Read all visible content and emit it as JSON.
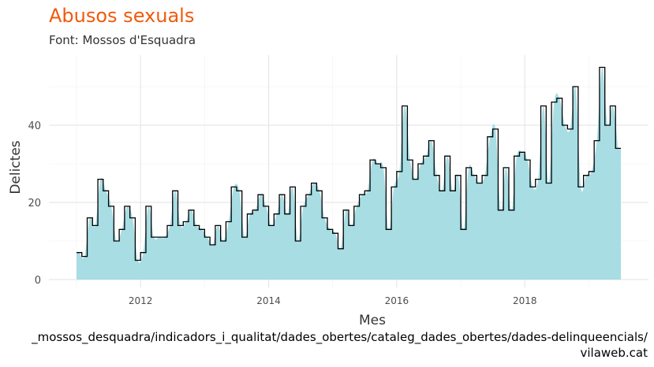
{
  "chart_data": {
    "type": "area",
    "title": "Abusos sexuals",
    "subtitle": "Font: Mossos d'Esquadra",
    "xlabel": "Mes",
    "ylabel": "Delictes",
    "x_start": "2011-01",
    "x_end": "2019-06",
    "x_ticks": [
      "2012",
      "2014",
      "2016",
      "2018"
    ],
    "y_ticks": [
      "0",
      "20",
      "40"
    ],
    "ylim": [
      0,
      57
    ],
    "grid": true,
    "fill_color": "#a8dde4",
    "step_color": "#000000",
    "series": [
      {
        "values": [
          7,
          6,
          16,
          14,
          26,
          23,
          19,
          10,
          13,
          19,
          16,
          5,
          7,
          19,
          11,
          11,
          11,
          14,
          23,
          14,
          15,
          18,
          14,
          13,
          11,
          9,
          14,
          10,
          15,
          24,
          23,
          11,
          17,
          18,
          22,
          19,
          14,
          17,
          22,
          17,
          24,
          10,
          19,
          22,
          25,
          23,
          16,
          13,
          12,
          8,
          18,
          14,
          19,
          22,
          23,
          31,
          30,
          29,
          13,
          24,
          28,
          45,
          31,
          26,
          30,
          32,
          36,
          27,
          23,
          32,
          23,
          27,
          13,
          29,
          27,
          25,
          27,
          37,
          39,
          18,
          29,
          18,
          32,
          33,
          31,
          24,
          26,
          45,
          25,
          46,
          47,
          40,
          39,
          50,
          24,
          27,
          28,
          36,
          55,
          40,
          45,
          34
        ]
      }
    ]
  },
  "footer": {
    "source_line": "_mossos_desquadra/indicadors_i_qualitat/dades_obertes/cataleg_dades_obertes/dades-delinqueencials/",
    "site": "vilaweb.cat"
  }
}
